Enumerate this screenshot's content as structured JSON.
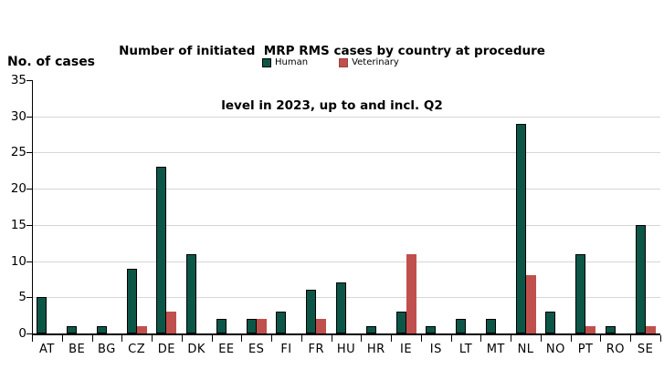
{
  "title": {
    "line1": "Number of initiated  MRP RMS cases by country at procedure",
    "line2": "level in 2023, up to and incl. Q2"
  },
  "y_axis_label": "No. of cases",
  "legend": [
    {
      "label": "Human",
      "color": "#0C5647",
      "border": "#000000"
    },
    {
      "label": "Veterinary",
      "color": "#C0504D",
      "border": "#9E413F"
    }
  ],
  "chart_data": {
    "type": "bar",
    "title": "Number of initiated MRP RMS cases by country at procedure level in 2023, up to and incl. Q2",
    "ylabel": "No. of cases",
    "xlabel": "",
    "ylim": [
      0,
      35
    ],
    "yticks": [
      0,
      5,
      10,
      15,
      20,
      25,
      30,
      35
    ],
    "grid": true,
    "legend_position": "top",
    "categories": [
      "AT",
      "BE",
      "BG",
      "CZ",
      "DE",
      "DK",
      "EE",
      "ES",
      "FI",
      "FR",
      "HU",
      "HR",
      "IE",
      "IS",
      "LT",
      "MT",
      "NL",
      "NO",
      "PT",
      "RO",
      "SE"
    ],
    "series": [
      {
        "name": "Human",
        "color": "#0C5647",
        "values": [
          5,
          1,
          1,
          9,
          23,
          11,
          2,
          2,
          3,
          6,
          7,
          1,
          3,
          1,
          2,
          2,
          29,
          3,
          11,
          1,
          15
        ]
      },
      {
        "name": "Veterinary",
        "color": "#C0504D",
        "values": [
          0,
          0,
          0,
          1,
          3,
          0,
          0,
          2,
          0,
          2,
          0,
          0,
          11,
          0,
          0,
          0,
          8,
          0,
          1,
          0,
          1
        ]
      }
    ]
  }
}
